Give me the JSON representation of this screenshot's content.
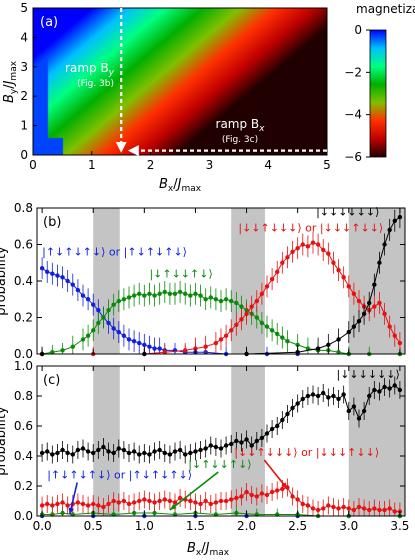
{
  "colors": {
    "blue": "#1020e0",
    "green": "#0a8a0a",
    "red": "#e81010",
    "black": "#000000",
    "shade": "#c4c4c4"
  },
  "chart_data": [
    {
      "type": "heatmap",
      "panel_label": "(a)",
      "xlabel": "Bx/Jmax",
      "ylabel": "By/Jmax",
      "xlim": [
        0,
        5
      ],
      "ylim": [
        0,
        5
      ],
      "xticks": [
        "0",
        "1",
        "2",
        "3",
        "4",
        "5"
      ],
      "yticks": [
        "0",
        "1",
        "2",
        "3",
        "4",
        "5"
      ],
      "colorbar": {
        "title": "magnetization",
        "ticks": [
          "0",
          "−2",
          "−4",
          "−6"
        ],
        "range": [
          -6,
          0
        ],
        "colors": [
          "#0000ff",
          "#00c0ff",
          "#00ff80",
          "#00b000",
          "#80c000",
          "#ff3000",
          "#c00000",
          "#200000"
        ]
      },
      "annotations": [
        {
          "name": "ramp-by",
          "text": "ramp B",
          "sub": "y",
          "note": "(Fig. 3b)",
          "path": [
            [
              1.5,
              5.0
            ],
            [
              1.5,
              0.15
            ]
          ]
        },
        {
          "name": "ramp-bx",
          "text": "ramp B",
          "sub": "x",
          "note": "(Fig. 3c)",
          "path": [
            [
              5.0,
              0.15
            ],
            [
              1.65,
              0.15
            ]
          ]
        }
      ]
    },
    {
      "type": "line",
      "panel_label": "(b)",
      "xlabel": "",
      "ylabel": "probability",
      "xlim": [
        -0.05,
        3.55
      ],
      "ylim": [
        0,
        0.8
      ],
      "yticks": [
        "0.0",
        "0.2",
        "0.4",
        "0.6",
        "0.8"
      ],
      "shaded_x": [
        [
          0.5,
          0.76
        ],
        [
          1.85,
          2.18
        ],
        [
          3.0,
          3.55
        ]
      ],
      "series": [
        {
          "color": "blue",
          "x": [
            0,
            0.05,
            0.1,
            0.15,
            0.2,
            0.25,
            0.3,
            0.35,
            0.4,
            0.45,
            0.5,
            0.55,
            0.6,
            0.65,
            0.7,
            0.75,
            0.8,
            0.85,
            0.9,
            0.95,
            1.0,
            1.05,
            1.1,
            1.15,
            1.2,
            1.3,
            1.4,
            1.5,
            1.6,
            1.8,
            2.0,
            2.2,
            2.5,
            3.0,
            3.5
          ],
          "y": [
            0.47,
            0.45,
            0.44,
            0.43,
            0.42,
            0.4,
            0.38,
            0.35,
            0.32,
            0.3,
            0.27,
            0.24,
            0.2,
            0.17,
            0.14,
            0.12,
            0.1,
            0.08,
            0.07,
            0.06,
            0.05,
            0.04,
            0.03,
            0.03,
            0.02,
            0.02,
            0.01,
            0.01,
            0.01,
            0.0,
            0.0,
            0.0,
            0.0,
            0.0,
            0.0
          ]
        },
        {
          "color": "green",
          "x": [
            0,
            0.1,
            0.2,
            0.3,
            0.4,
            0.45,
            0.5,
            0.55,
            0.6,
            0.65,
            0.7,
            0.75,
            0.8,
            0.85,
            0.9,
            0.95,
            1.0,
            1.05,
            1.1,
            1.15,
            1.2,
            1.25,
            1.3,
            1.35,
            1.4,
            1.45,
            1.5,
            1.55,
            1.6,
            1.65,
            1.7,
            1.75,
            1.8,
            1.85,
            1.9,
            1.95,
            2.0,
            2.05,
            2.1,
            2.15,
            2.2,
            2.25,
            2.3,
            2.35,
            2.4,
            2.5,
            2.6,
            2.7,
            2.8,
            2.9,
            3.0,
            3.2,
            3.5
          ],
          "y": [
            0.0,
            0.01,
            0.02,
            0.04,
            0.08,
            0.1,
            0.13,
            0.17,
            0.2,
            0.24,
            0.27,
            0.29,
            0.3,
            0.31,
            0.32,
            0.33,
            0.32,
            0.33,
            0.32,
            0.33,
            0.34,
            0.33,
            0.33,
            0.34,
            0.33,
            0.32,
            0.33,
            0.32,
            0.3,
            0.31,
            0.3,
            0.29,
            0.3,
            0.29,
            0.28,
            0.26,
            0.24,
            0.22,
            0.2,
            0.17,
            0.15,
            0.13,
            0.11,
            0.09,
            0.07,
            0.05,
            0.03,
            0.02,
            0.02,
            0.01,
            0.0,
            0.0,
            0.0
          ]
        },
        {
          "color": "red",
          "x": [
            0,
            0.5,
            1.0,
            1.2,
            1.4,
            1.5,
            1.6,
            1.7,
            1.75,
            1.8,
            1.85,
            1.9,
            1.95,
            2.0,
            2.05,
            2.1,
            2.15,
            2.2,
            2.25,
            2.3,
            2.35,
            2.4,
            2.45,
            2.5,
            2.55,
            2.6,
            2.65,
            2.7,
            2.75,
            2.8,
            2.85,
            2.9,
            2.95,
            3.0,
            3.05,
            3.1,
            3.15,
            3.2,
            3.25,
            3.3,
            3.35,
            3.4,
            3.45,
            3.5
          ],
          "y": [
            0.0,
            0.0,
            0.0,
            0.01,
            0.02,
            0.03,
            0.04,
            0.06,
            0.08,
            0.1,
            0.13,
            0.16,
            0.19,
            0.22,
            0.26,
            0.29,
            0.33,
            0.37,
            0.41,
            0.45,
            0.5,
            0.53,
            0.56,
            0.58,
            0.6,
            0.59,
            0.61,
            0.6,
            0.57,
            0.55,
            0.5,
            0.46,
            0.42,
            0.37,
            0.33,
            0.29,
            0.26,
            0.24,
            0.26,
            0.28,
            0.22,
            0.15,
            0.1,
            0.06
          ]
        },
        {
          "color": "black",
          "x": [
            0,
            1.0,
            2.0,
            2.5,
            2.7,
            2.8,
            2.9,
            3.0,
            3.05,
            3.1,
            3.15,
            3.2,
            3.25,
            3.3,
            3.35,
            3.4,
            3.45,
            3.5
          ],
          "y": [
            0.0,
            0.0,
            0.0,
            0.01,
            0.03,
            0.05,
            0.08,
            0.12,
            0.15,
            0.18,
            0.22,
            0.28,
            0.38,
            0.5,
            0.6,
            0.68,
            0.73,
            0.75
          ]
        }
      ],
      "labels": [
        {
          "name": "label-b-blue",
          "color": "blue",
          "text": "|↑↓↑↓↑↓⟩ or |↑↓↑↓↑↓⟩",
          "x": 0.0,
          "y": 0.54
        },
        {
          "name": "label-b-green",
          "color": "green",
          "text": "|↓↑↓↓↑↓⟩",
          "x": 1.05,
          "y": 0.42
        },
        {
          "name": "label-b-red",
          "color": "red",
          "text": "|↓↓↑↓↓↓⟩ or |↓↓↓↑↓↓⟩",
          "x": 1.92,
          "y": 0.67
        },
        {
          "name": "label-b-black",
          "color": "black",
          "text": "|↓↓↓↓↓↓⟩",
          "x": 2.68,
          "y": 0.76
        }
      ]
    },
    {
      "type": "line",
      "panel_label": "(c)",
      "xlabel": "Bx/Jmax",
      "ylabel": "probability",
      "xlim": [
        -0.05,
        3.55
      ],
      "ylim": [
        0,
        1.0
      ],
      "xticks": [
        "0.0",
        "0.5",
        "1.0",
        "1.5",
        "2.0",
        "2.5",
        "3.0",
        "3.5"
      ],
      "yticks": [
        "0.0",
        "0.2",
        "0.4",
        "0.6",
        "0.8",
        "1.0"
      ],
      "shaded_x": [
        [
          0.5,
          0.76
        ],
        [
          1.85,
          2.18
        ],
        [
          3.0,
          3.55
        ]
      ],
      "series": [
        {
          "color": "blue",
          "x": [
            0,
            0.5,
            1.0,
            1.5,
            2.0,
            2.5,
            3.0,
            3.5
          ],
          "y": [
            0.0,
            0.0,
            0.0,
            0.0,
            0.0,
            0.0,
            0.0,
            0.0
          ]
        },
        {
          "color": "green",
          "x": [
            0,
            0.1,
            0.2,
            0.3,
            0.5,
            0.7,
            0.9,
            1.1,
            1.3,
            1.5,
            1.7,
            1.9,
            2.1,
            2.3,
            2.5,
            2.7,
            3.0,
            3.5
          ],
          "y": [
            0.01,
            0.01,
            0.02,
            0.01,
            0.02,
            0.01,
            0.02,
            0.02,
            0.01,
            0.02,
            0.01,
            0.02,
            0.01,
            0.01,
            0.01,
            0.0,
            0.0,
            0.0
          ]
        },
        {
          "color": "red",
          "x": [
            0,
            0.05,
            0.1,
            0.15,
            0.2,
            0.25,
            0.3,
            0.35,
            0.4,
            0.45,
            0.5,
            0.55,
            0.6,
            0.65,
            0.7,
            0.75,
            0.8,
            0.85,
            0.9,
            0.95,
            1.0,
            1.05,
            1.1,
            1.15,
            1.2,
            1.25,
            1.3,
            1.35,
            1.4,
            1.45,
            1.5,
            1.55,
            1.6,
            1.65,
            1.7,
            1.75,
            1.8,
            1.85,
            1.9,
            1.95,
            2.0,
            2.05,
            2.1,
            2.15,
            2.2,
            2.25,
            2.3,
            2.35,
            2.4,
            2.45,
            2.5,
            2.55,
            2.6,
            2.65,
            2.7,
            2.75,
            2.8,
            2.85,
            2.9,
            2.95,
            3.0,
            3.05,
            3.1,
            3.15,
            3.2,
            3.25,
            3.3,
            3.35,
            3.4,
            3.45,
            3.5
          ],
          "y": [
            0.07,
            0.08,
            0.07,
            0.08,
            0.09,
            0.07,
            0.08,
            0.09,
            0.08,
            0.07,
            0.08,
            0.07,
            0.06,
            0.08,
            0.1,
            0.09,
            0.1,
            0.08,
            0.09,
            0.1,
            0.11,
            0.1,
            0.09,
            0.1,
            0.11,
            0.1,
            0.09,
            0.12,
            0.11,
            0.1,
            0.09,
            0.08,
            0.1,
            0.08,
            0.09,
            0.1,
            0.1,
            0.11,
            0.12,
            0.13,
            0.16,
            0.14,
            0.13,
            0.15,
            0.14,
            0.16,
            0.17,
            0.18,
            0.19,
            0.13,
            0.11,
            0.08,
            0.07,
            0.05,
            0.04,
            0.05,
            0.07,
            0.06,
            0.05,
            0.06,
            0.05,
            0.04,
            0.06,
            0.05,
            0.04,
            0.05,
            0.04,
            0.04,
            0.05,
            0.03,
            0.03
          ]
        },
        {
          "color": "black",
          "x": [
            0,
            0.05,
            0.1,
            0.15,
            0.2,
            0.25,
            0.3,
            0.35,
            0.4,
            0.45,
            0.5,
            0.55,
            0.6,
            0.65,
            0.7,
            0.75,
            0.8,
            0.85,
            0.9,
            0.95,
            1.0,
            1.05,
            1.1,
            1.15,
            1.2,
            1.25,
            1.3,
            1.35,
            1.4,
            1.45,
            1.5,
            1.55,
            1.6,
            1.65,
            1.7,
            1.75,
            1.8,
            1.85,
            1.9,
            1.95,
            2.0,
            2.05,
            2.1,
            2.15,
            2.2,
            2.25,
            2.3,
            2.35,
            2.4,
            2.45,
            2.5,
            2.55,
            2.6,
            2.65,
            2.7,
            2.75,
            2.8,
            2.85,
            2.9,
            2.95,
            3.0,
            3.05,
            3.1,
            3.15,
            3.2,
            3.25,
            3.3,
            3.35,
            3.4,
            3.45,
            3.5
          ],
          "y": [
            0.42,
            0.43,
            0.41,
            0.42,
            0.44,
            0.42,
            0.41,
            0.44,
            0.45,
            0.43,
            0.42,
            0.44,
            0.46,
            0.43,
            0.42,
            0.45,
            0.44,
            0.42,
            0.43,
            0.41,
            0.42,
            0.41,
            0.43,
            0.44,
            0.42,
            0.41,
            0.43,
            0.44,
            0.41,
            0.42,
            0.43,
            0.44,
            0.45,
            0.47,
            0.46,
            0.45,
            0.47,
            0.48,
            0.5,
            0.49,
            0.51,
            0.47,
            0.5,
            0.52,
            0.55,
            0.58,
            0.6,
            0.64,
            0.68,
            0.72,
            0.75,
            0.78,
            0.8,
            0.81,
            0.8,
            0.82,
            0.79,
            0.8,
            0.78,
            0.81,
            0.7,
            0.73,
            0.65,
            0.7,
            0.8,
            0.84,
            0.83,
            0.86,
            0.85,
            0.87,
            0.84
          ]
        }
      ],
      "labels": [
        {
          "name": "label-c-blue",
          "color": "blue",
          "text": "|↑↓↑↓↑↓⟩ or |↑↓↑↓↑↓⟩",
          "x": 0.05,
          "y": 0.25,
          "arrow_to": [
            0.27,
            0.01
          ]
        },
        {
          "name": "label-c-green",
          "color": "green",
          "text": "|↓↑↓↓↑↓⟩",
          "x": 1.43,
          "y": 0.32,
          "arrow_to": [
            1.25,
            0.04
          ]
        },
        {
          "name": "label-c-red",
          "color": "red",
          "text": "|↓↓↑↓↓↓⟩ or |↓↓↓↑↓↓⟩",
          "x": 1.88,
          "y": 0.4,
          "arrow_to": [
            2.4,
            0.18
          ]
        },
        {
          "name": "label-c-black",
          "color": "black",
          "text": "|↓↓↓↓↓↓⟩",
          "x": 2.88,
          "y": 0.92
        }
      ]
    }
  ]
}
